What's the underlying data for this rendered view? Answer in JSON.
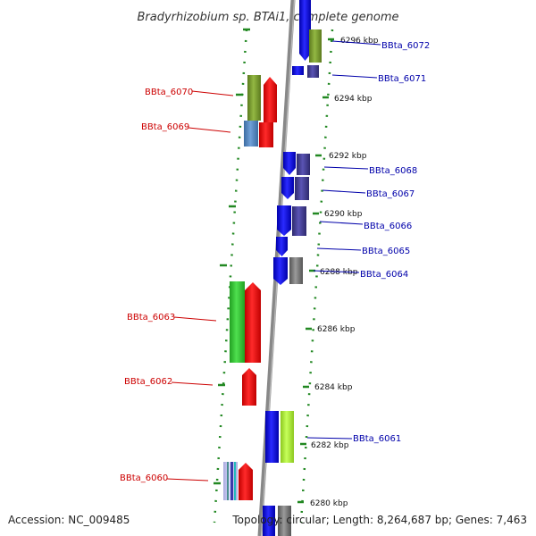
{
  "title": "Bradyrhizobium sp. BTAi1, complete genome",
  "footer": {
    "accession": "Accession: NC_009485",
    "topology": "Topology: circular; Length: 8,264,687 bp; Genes: 7,463"
  },
  "colors": {
    "backbone": "#888888",
    "dots": "#228822",
    "left_label": "#cc0000",
    "right_label": "#0000aa"
  },
  "kbp_labels": [
    "6296 kbp",
    "6294 kbp",
    "6292 kbp",
    "6290 kbp",
    "6288 kbp",
    "6286 kbp",
    "6284 kbp",
    "6282 kbp",
    "6280 kbp"
  ],
  "genes": {
    "left": [
      "BBta_6070",
      "BBta_6069",
      "BBta_6063",
      "BBta_6062",
      "BBta_6060"
    ],
    "right": [
      "BBta_6072",
      "BBta_6071",
      "BBta_6068",
      "BBta_6067",
      "BBta_6066",
      "BBta_6065",
      "BBta_6064",
      "BBta_6061"
    ]
  }
}
